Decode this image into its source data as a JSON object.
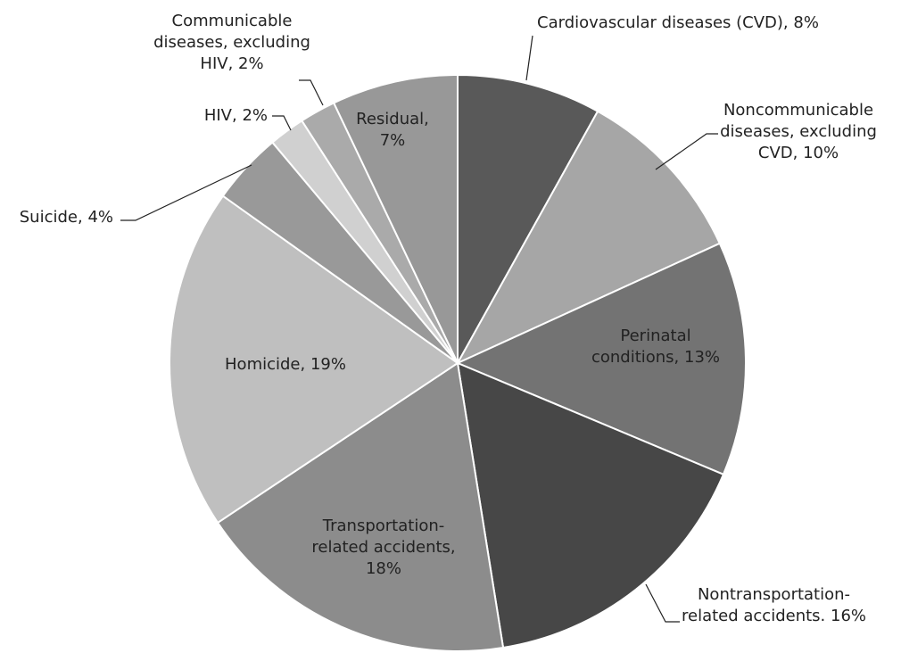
{
  "chart_data": {
    "type": "pie",
    "categories": [
      "Cardiovascular diseases (CVD),",
      "Noncommunicable diseases, excluding CVD,",
      "Perinatal conditions,",
      "Nontransportation-related accidents.",
      "Transportation-related accidents,",
      "Homicide,",
      "Suicide,",
      "HIV,",
      "Communicable diseases, excluding HIV,",
      "Residual,"
    ],
    "values": [
      8,
      10,
      13,
      16,
      18,
      19,
      4,
      2,
      2,
      7
    ],
    "value_labels": [
      "8%",
      "10%",
      "13%",
      "16%",
      "18%",
      "19%",
      "4%",
      "2%",
      "2%",
      "7%"
    ],
    "colors": [
      "#595959",
      "#a6a6a6",
      "#737373",
      "#474747",
      "#8c8c8c",
      "#bfbfbf",
      "#999999",
      "#d0d0d0",
      "#aaaaaa",
      "#989898"
    ]
  }
}
